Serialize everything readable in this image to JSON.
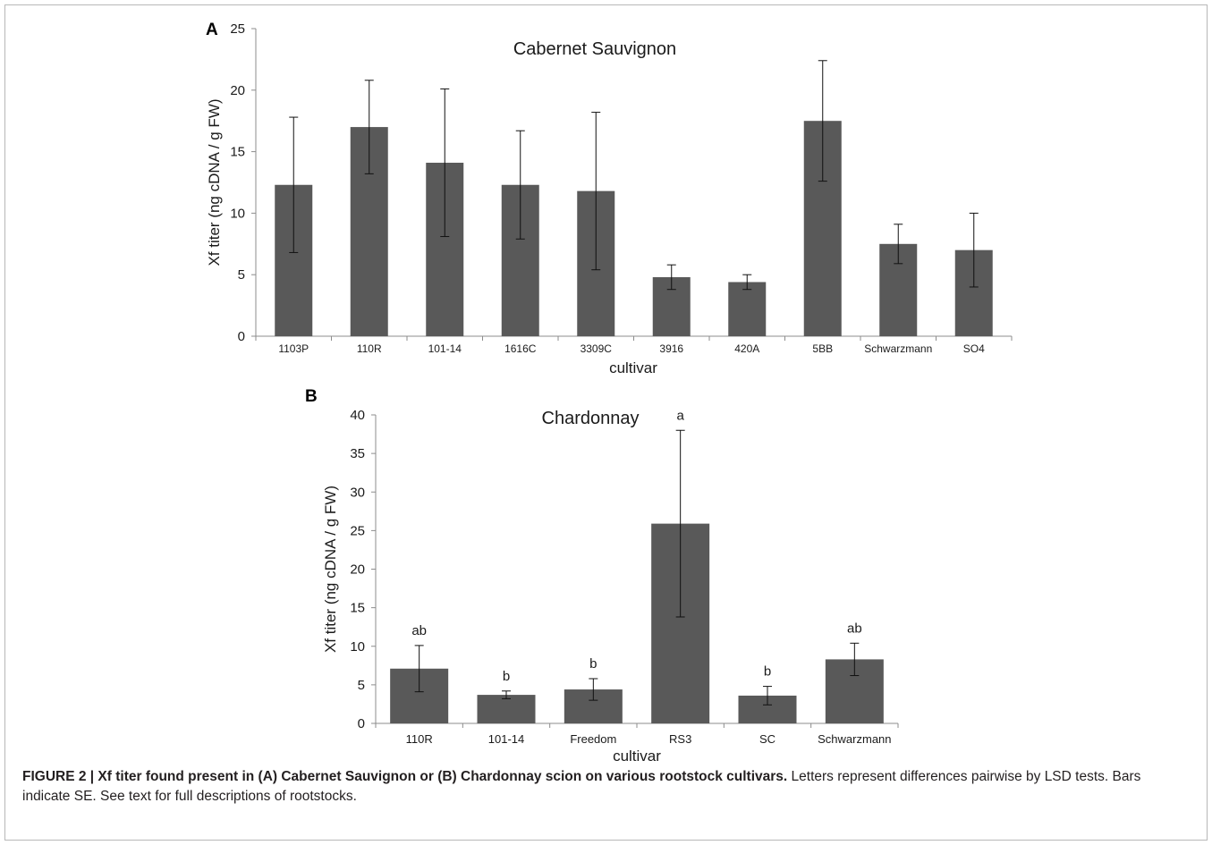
{
  "chart_data": [
    {
      "type": "bar",
      "panel": "A",
      "title": "Cabernet Sauvignon",
      "xlabel": "cultivar",
      "ylabel": "Xf titer (ng cDNA / g FW)",
      "ylim": [
        0,
        25
      ],
      "yticks": [
        0,
        5,
        10,
        15,
        20,
        25
      ],
      "categories": [
        "1103P",
        "110R",
        "101-14",
        "1616C",
        "3309C",
        "3916",
        "420A",
        "5BB",
        "Schwarzmann",
        "SO4"
      ],
      "values": [
        12.3,
        17.0,
        14.1,
        12.3,
        11.8,
        4.8,
        4.4,
        17.5,
        7.5,
        7.0
      ],
      "errors": [
        5.5,
        3.8,
        6.0,
        4.4,
        6.4,
        1.0,
        0.6,
        4.9,
        1.6,
        3.0
      ],
      "bar_color": "#595959",
      "grid": false
    },
    {
      "type": "bar",
      "panel": "B",
      "title": "Chardonnay",
      "xlabel": "cultivar",
      "ylabel": "Xf titer (ng cDNA / g FW)",
      "ylim": [
        0,
        40
      ],
      "yticks": [
        0,
        5,
        10,
        15,
        20,
        25,
        30,
        35,
        40
      ],
      "categories": [
        "110R",
        "101-14",
        "Freedom",
        "RS3",
        "SC",
        "Schwarzmann"
      ],
      "values": [
        7.1,
        3.7,
        4.4,
        25.9,
        3.6,
        8.3
      ],
      "errors": [
        3.0,
        0.5,
        1.4,
        12.1,
        1.2,
        2.1
      ],
      "annotations": [
        "ab",
        "b",
        "b",
        "a",
        "b",
        "ab"
      ],
      "bar_color": "#595959",
      "grid": false
    }
  ],
  "caption": {
    "bold": "FIGURE 2 | Xf titer found present in (A) Cabernet Sauvignon or (B) Chardonnay scion on various rootstock cultivars.",
    "text": " Letters represent differences pairwise by LSD tests. Bars indicate SE. See text for full descriptions of rootstocks."
  }
}
